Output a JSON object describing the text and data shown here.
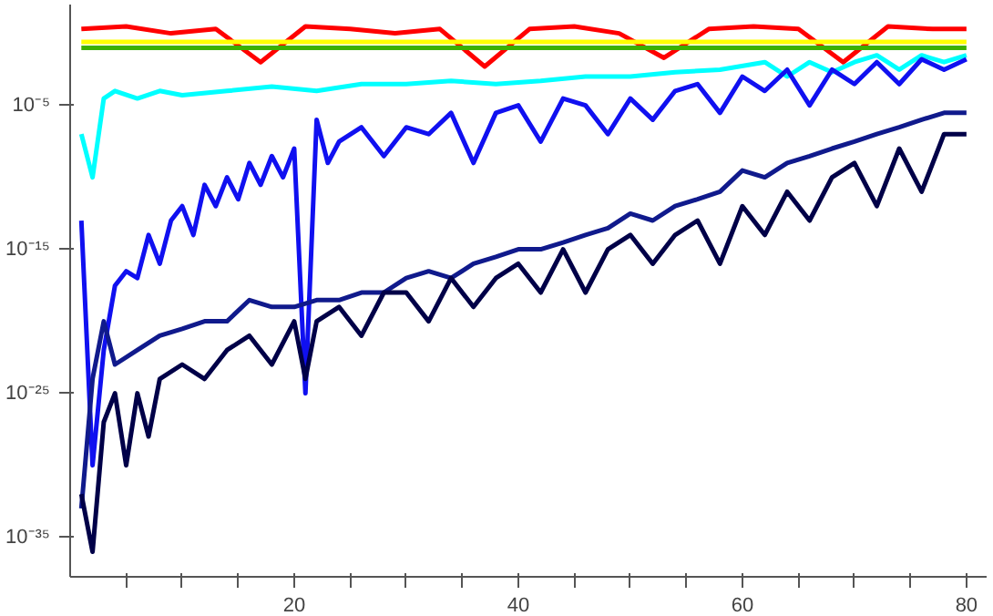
{
  "chart_data": {
    "type": "line",
    "log": "y",
    "grid": false,
    "line_style": "solid",
    "xlim": [
      0,
      81.8
    ],
    "ylim": [
      1.8e-38,
      100
    ],
    "xticks": [
      {
        "value": 5,
        "label": null
      },
      {
        "value": 10,
        "label": null
      },
      {
        "value": 15,
        "label": null
      },
      20,
      {
        "value": 25,
        "label": null
      },
      {
        "value": 30,
        "label": null
      },
      {
        "value": 35,
        "label": null
      },
      40,
      {
        "value": 45,
        "label": null
      },
      {
        "value": 50,
        "label": null
      },
      {
        "value": 55,
        "label": null
      },
      60,
      {
        "value": 65,
        "label": null
      },
      {
        "value": 70,
        "label": null
      },
      {
        "value": 75,
        "label": null
      },
      80
    ],
    "yticks": [
      {
        "value": 1e-35,
        "label": "10⁻³⁵"
      },
      {
        "value": 1e-25,
        "label": "10⁻²⁵"
      },
      {
        "value": 1e-15,
        "label": "10⁻¹⁵"
      },
      {
        "value": 1e-05,
        "label": "10⁻⁵"
      }
    ],
    "series": [
      {
        "color": "#ff0000",
        "x": [
          1,
          5,
          9,
          13,
          17,
          21,
          25,
          29,
          33,
          37,
          41,
          45,
          49,
          53,
          57,
          61,
          65,
          69,
          73,
          77,
          80
        ],
        "values": [
          2,
          3,
          1,
          2,
          0.01,
          3,
          2,
          1,
          2,
          0.005,
          2,
          3,
          1,
          0.02,
          2,
          3,
          2,
          0.01,
          3,
          2,
          2
        ]
      },
      {
        "color": "#3cb000",
        "x": [
          1,
          20,
          40,
          60,
          80
        ],
        "values": [
          0.1,
          0.1,
          0.1,
          0.1,
          0.1
        ]
      },
      {
        "color": "#ffff00",
        "x": [
          1,
          20,
          40,
          60,
          80
        ],
        "values": [
          0.25,
          0.25,
          0.25,
          0.25,
          0.25
        ]
      },
      {
        "color": "#00ffff",
        "x": [
          1,
          2,
          3,
          4,
          6,
          8,
          10,
          14,
          18,
          22,
          26,
          30,
          34,
          38,
          42,
          46,
          50,
          54,
          58,
          62,
          64,
          66,
          68,
          70,
          72,
          74,
          76,
          78,
          80
        ],
        "values": [
          1e-07,
          1e-10,
          3e-05,
          0.0001,
          3e-05,
          0.0001,
          5e-05,
          0.0001,
          0.0002,
          0.0001,
          0.0003,
          0.0003,
          0.0005,
          0.0003,
          0.0005,
          0.001,
          0.001,
          0.002,
          0.003,
          0.01,
          0.001,
          0.01,
          0.002,
          0.01,
          0.03,
          0.003,
          0.03,
          0.01,
          0.03
        ]
      },
      {
        "color": "#1010f0",
        "x": [
          1,
          2,
          3,
          4,
          5,
          6,
          7,
          8,
          9,
          10,
          11,
          12,
          13,
          14,
          15,
          16,
          17,
          18,
          19,
          20,
          21,
          22,
          23,
          24,
          26,
          28,
          30,
          32,
          34,
          36,
          38,
          40,
          42,
          44,
          46,
          48,
          50,
          52,
          54,
          56,
          58,
          60,
          62,
          64,
          66,
          68,
          70,
          72,
          74,
          76,
          78,
          80
        ],
        "values": [
          1e-13,
          1e-30,
          1e-22,
          3e-18,
          3e-17,
          1e-17,
          1e-14,
          1e-16,
          1e-13,
          1e-12,
          1e-14,
          3e-11,
          1e-12,
          1e-10,
          3e-12,
          1e-09,
          3e-11,
          3e-09,
          1e-10,
          1e-08,
          1e-25,
          1e-06,
          1e-09,
          3e-08,
          3e-07,
          3e-09,
          3e-07,
          1e-07,
          3e-06,
          1e-09,
          3e-06,
          1e-05,
          3e-08,
          3e-05,
          1e-05,
          1e-07,
          3e-05,
          1e-06,
          0.0001,
          0.0003,
          3e-06,
          0.001,
          0.0001,
          0.003,
          1e-05,
          0.003,
          0.0003,
          0.01,
          0.0003,
          0.016,
          0.003,
          0.016
        ]
      },
      {
        "color": "#101a8c",
        "x": [
          1,
          2,
          3,
          4,
          6,
          8,
          10,
          12,
          14,
          16,
          18,
          20,
          22,
          24,
          26,
          28,
          30,
          32,
          34,
          36,
          38,
          40,
          42,
          44,
          46,
          48,
          50,
          52,
          54,
          56,
          58,
          60,
          62,
          64,
          66,
          68,
          70,
          72,
          74,
          76,
          78,
          80
        ],
        "values": [
          1e-33,
          1e-24,
          1e-20,
          1e-23,
          1e-22,
          1e-21,
          3e-21,
          1e-20,
          1e-20,
          3e-19,
          1e-19,
          1e-19,
          3e-19,
          3e-19,
          1e-18,
          1e-18,
          1e-17,
          3e-17,
          1e-17,
          1e-16,
          3e-16,
          1e-15,
          1e-15,
          3e-15,
          1e-14,
          3e-14,
          3e-13,
          1e-13,
          1e-12,
          3e-12,
          1e-11,
          3e-10,
          1e-10,
          1e-09,
          3e-09,
          1e-08,
          3e-08,
          1e-07,
          3e-07,
          1e-06,
          3e-06,
          3e-06
        ]
      },
      {
        "color": "#000048",
        "x": [
          1,
          2,
          3,
          4,
          5,
          6,
          7,
          8,
          10,
          12,
          14,
          16,
          18,
          20,
          21,
          22,
          24,
          26,
          28,
          30,
          32,
          34,
          36,
          38,
          40,
          42,
          44,
          46,
          48,
          50,
          52,
          54,
          56,
          58,
          60,
          62,
          64,
          66,
          68,
          70,
          72,
          74,
          76,
          78,
          80
        ],
        "values": [
          1e-32,
          1e-36,
          1e-27,
          1e-25,
          1e-30,
          1e-25,
          1e-28,
          1e-24,
          1e-23,
          1e-24,
          1e-22,
          1e-21,
          1e-23,
          1e-20,
          1e-24,
          1e-20,
          1e-19,
          1e-21,
          1e-18,
          1e-18,
          1e-20,
          1e-17,
          1e-19,
          1e-17,
          1e-16,
          1e-18,
          1e-15,
          1e-18,
          1e-15,
          1e-14,
          1e-16,
          1e-14,
          1e-13,
          1e-16,
          1e-12,
          1e-14,
          1e-11,
          1e-13,
          1e-10,
          1e-09,
          1e-12,
          1e-08,
          1e-11,
          1e-07,
          1e-07
        ]
      }
    ]
  }
}
